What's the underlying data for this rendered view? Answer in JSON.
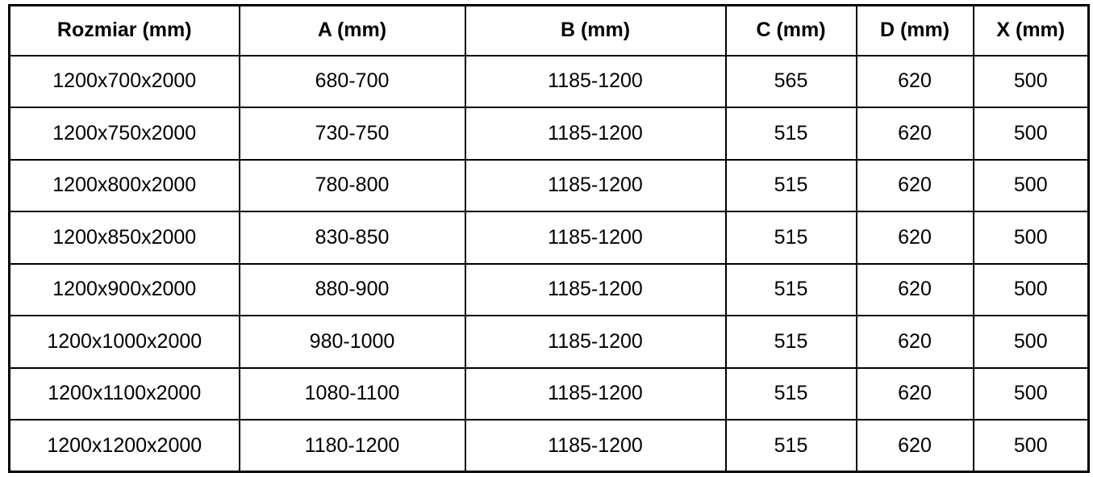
{
  "table": {
    "columns": [
      {
        "key": "rozmiar",
        "label": "Rozmiar (mm)"
      },
      {
        "key": "a",
        "label": "A (mm)"
      },
      {
        "key": "b",
        "label": "B (mm)"
      },
      {
        "key": "c",
        "label": "C (mm)"
      },
      {
        "key": "d",
        "label": "D (mm)"
      },
      {
        "key": "x",
        "label": "X (mm)"
      }
    ],
    "rows": [
      [
        "1200x700x2000",
        "680-700",
        "1185-1200",
        "565",
        "620",
        "500"
      ],
      [
        "1200x750x2000",
        "730-750",
        "1185-1200",
        "515",
        "620",
        "500"
      ],
      [
        "1200x800x2000",
        "780-800",
        "1185-1200",
        "515",
        "620",
        "500"
      ],
      [
        "1200x850x2000",
        "830-850",
        "1185-1200",
        "515",
        "620",
        "500"
      ],
      [
        "1200x900x2000",
        "880-900",
        "1185-1200",
        "515",
        "620",
        "500"
      ],
      [
        "1200x1000x2000",
        "980-1000",
        "1185-1200",
        "515",
        "620",
        "500"
      ],
      [
        "1200x1100x2000",
        "1080-1100",
        "1185-1200",
        "515",
        "620",
        "500"
      ],
      [
        "1200x1200x2000",
        "1180-1200",
        "1185-1200",
        "515",
        "620",
        "500"
      ]
    ]
  },
  "colors": {
    "border": "#000000",
    "text": "#000000",
    "background": "#ffffff"
  }
}
